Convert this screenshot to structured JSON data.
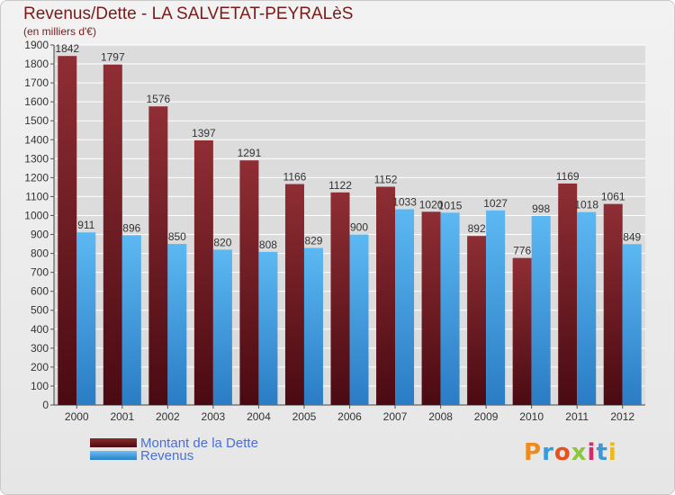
{
  "header": {
    "title": "Revenus/Dette - LA SALVETAT-PEYRALèS",
    "subtitle": "(en milliers d'€)"
  },
  "logo": {
    "text": "Proxiti"
  },
  "colors": {
    "dette": "#7a1c22",
    "revenus": "#4aa6e8",
    "text": "#7a1a1a",
    "legend_text": "#4a6fd8"
  },
  "chart_data": {
    "type": "bar",
    "title": "Revenus/Dette - LA SALVETAT-PEYRALèS",
    "ylabel": "(en milliers d'€)",
    "categories": [
      "2000",
      "2001",
      "2002",
      "2003",
      "2004",
      "2005",
      "2006",
      "2007",
      "2008",
      "2009",
      "2010",
      "2011",
      "2012"
    ],
    "series": [
      {
        "name": "Montant de la Dette",
        "values": [
          1842,
          1797,
          1576,
          1397,
          1291,
          1166,
          1122,
          1152,
          1020,
          892,
          776,
          1169,
          1061
        ]
      },
      {
        "name": "Revenus",
        "values": [
          911,
          896,
          850,
          820,
          808,
          829,
          900,
          1033,
          1015,
          1027,
          998,
          1018,
          849
        ]
      }
    ],
    "ylim": [
      0,
      1900
    ],
    "ytick_step": 100,
    "grid": true,
    "legend": "bottom-left"
  }
}
